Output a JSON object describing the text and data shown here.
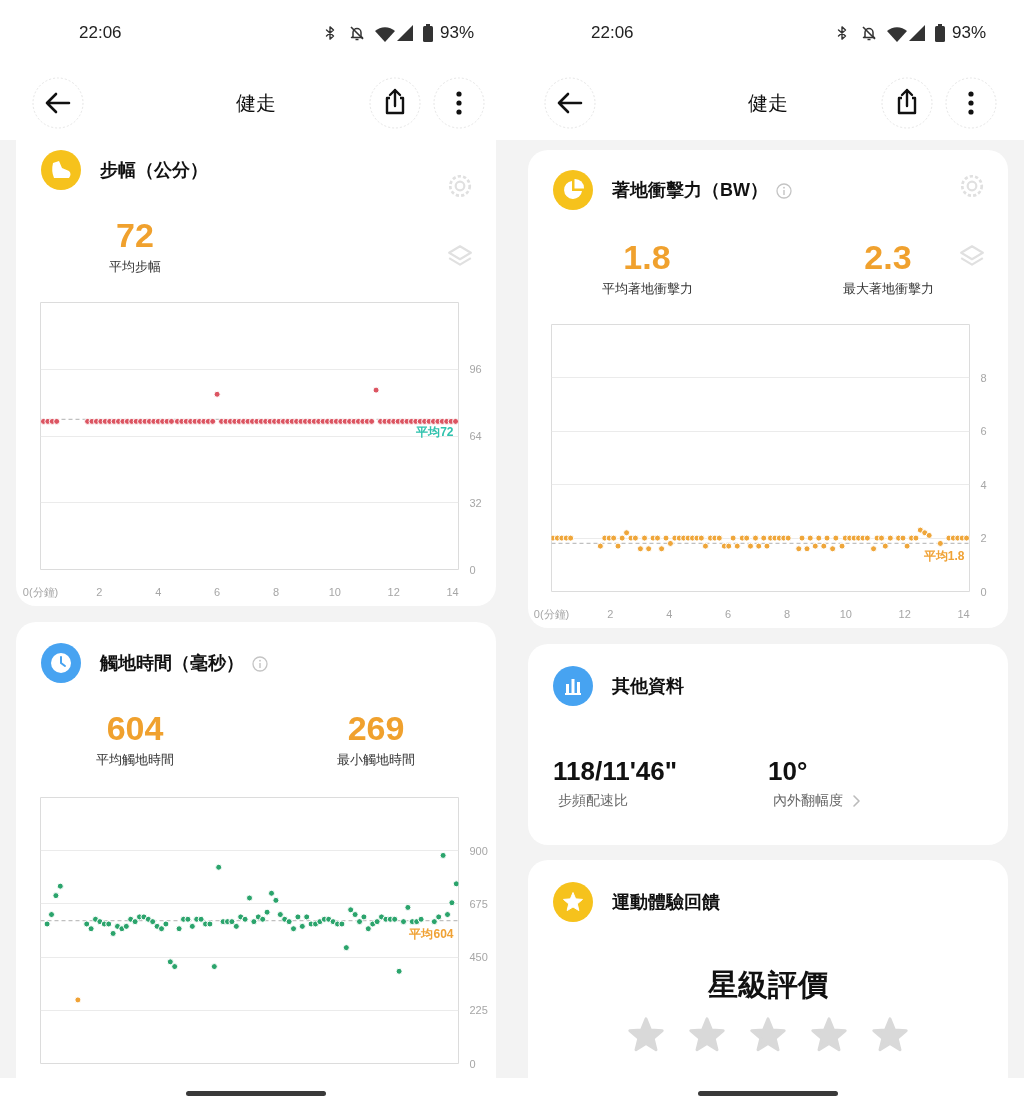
{
  "chart_data": [
    {
      "type": "other",
      "title": "健走",
      "annotations": [
        "22:06",
        "93%"
      ]
    },
    {
      "type": "scatter",
      "title": "步幅（公分）",
      "annotations": [
        "72",
        "平均步幅"
      ],
      "x": [
        0.1,
        0.25,
        0.4,
        0.55,
        1.6,
        1.75,
        1.9,
        2.05,
        2.2,
        2.35,
        2.5,
        2.65,
        2.8,
        2.95,
        3.1,
        3.25,
        3.4,
        3.55,
        3.7,
        3.85,
        4.0,
        4.15,
        4.3,
        4.45,
        4.65,
        4.8,
        4.95,
        5.1,
        5.25,
        5.4,
        5.55,
        5.7,
        5.85,
        6.0,
        6.15,
        6.3,
        6.45,
        6.6,
        6.75,
        6.9,
        7.05,
        7.2,
        7.35,
        7.5,
        7.65,
        7.8,
        7.95,
        8.1,
        8.25,
        8.4,
        8.55,
        8.7,
        8.85,
        9.0,
        9.15,
        9.3,
        9.45,
        9.6,
        9.75,
        9.9,
        10.05,
        10.2,
        10.35,
        10.5,
        10.65,
        10.8,
        10.95,
        11.1,
        11.25,
        11.4,
        11.55,
        11.7,
        11.85,
        12.0,
        12.15,
        12.3,
        12.45,
        12.6,
        12.75,
        12.9,
        13.05,
        13.2,
        13.35,
        13.5,
        13.65,
        13.8,
        13.95,
        14.1
      ],
      "xlim": [
        0,
        14.2
      ],
      "xticks": [
        {
          "value": 0,
          "label": "0(分鐘)"
        },
        2,
        4,
        6,
        8,
        10,
        12,
        14
      ],
      "ylim": [
        0,
        128
      ],
      "yticks": [
        0,
        32,
        64,
        96
      ],
      "grid": "y",
      "marker": "circle",
      "series": [
        {
          "color": "#dc5562",
          "values": [
            71,
            71,
            71,
            71,
            71,
            71,
            71,
            71,
            71,
            71,
            71,
            71,
            71,
            71,
            71,
            71,
            71,
            71,
            71,
            71,
            71,
            71,
            71,
            71,
            71,
            71,
            71,
            71,
            71,
            71,
            71,
            71,
            71,
            84,
            71,
            71,
            71,
            71,
            71,
            71,
            71,
            71,
            71,
            71,
            71,
            71,
            71,
            71,
            71,
            71,
            71,
            71,
            71,
            71,
            71,
            71,
            71,
            71,
            71,
            71,
            71,
            71,
            71,
            71,
            71,
            71,
            71,
            71,
            71,
            86,
            71,
            71,
            71,
            71,
            71,
            71,
            71,
            71,
            71,
            71,
            71,
            71,
            71,
            71,
            71,
            71,
            71,
            71
          ]
        }
      ],
      "ref_lines": [
        {
          "axis": "y",
          "value": 72,
          "label": "平均72",
          "color": "#c0c0c0",
          "line_style": "dashed"
        }
      ]
    },
    {
      "type": "scatter",
      "title": "觸地時間（毫秒）",
      "annotations": [
        "604",
        "平均觸地時間",
        "269",
        "最小觸地時間"
      ],
      "categories": [
        null,
        null,
        null,
        null,
        null,
        null,
        null,
        null,
        null,
        null,
        null,
        null,
        null,
        null,
        null,
        null,
        null,
        null,
        null,
        null,
        null,
        null,
        null,
        null,
        null,
        null,
        null,
        null,
        null,
        null,
        null,
        null,
        null,
        null,
        null,
        null,
        null,
        null,
        null,
        null,
        null,
        null,
        null,
        null,
        null,
        null,
        null,
        null,
        null,
        null,
        null,
        null,
        null,
        null,
        null,
        null,
        null,
        null,
        null,
        null,
        null,
        null,
        null,
        null,
        null,
        null,
        null,
        null,
        null,
        null,
        null,
        null,
        null,
        null,
        null,
        null,
        null,
        null,
        null,
        null,
        null,
        null,
        null,
        null,
        null,
        null,
        null,
        null,
        null,
        null,
        null,
        null,
        null,
        null,
        null
      ],
      "tick_labels": "y",
      "ylim": [
        0,
        1125
      ],
      "yticks": [
        0,
        225,
        450,
        675,
        900
      ],
      "grid": "y",
      "marker": "circle",
      "series": [
        {
          "color": "#2ba46c",
          "values": [
            null,
            590,
            630,
            710,
            750,
            null,
            null,
            null,
            null,
            null,
            590,
            570,
            610,
            600,
            590,
            590,
            550,
            580,
            570,
            580,
            610,
            600,
            620,
            620,
            610,
            600,
            580,
            570,
            590,
            430,
            410,
            570,
            610,
            610,
            580,
            610,
            610,
            590,
            590,
            410,
            830,
            600,
            600,
            600,
            580,
            620,
            610,
            700,
            600,
            620,
            610,
            640,
            720,
            690,
            630,
            610,
            600,
            570,
            620,
            580,
            620,
            590,
            590,
            600,
            610,
            610,
            600,
            590,
            590,
            490,
            650,
            630,
            600,
            620,
            570,
            590,
            600,
            620,
            610,
            610,
            610,
            390,
            600,
            660,
            600,
            600,
            610,
            null,
            null,
            600,
            620,
            880,
            630,
            680,
            760
          ]
        },
        {
          "color": "#f0a235",
          "values": [
            null,
            null,
            null,
            null,
            null,
            null,
            null,
            null,
            269,
            null,
            null,
            null,
            null,
            null,
            null,
            null,
            null,
            null,
            null,
            null,
            null,
            null,
            null,
            null,
            null,
            null,
            null,
            null,
            null,
            null,
            null,
            null,
            null,
            null,
            null,
            null,
            null,
            null,
            null,
            null,
            null,
            null,
            null,
            null,
            null,
            null,
            null,
            null,
            null,
            null,
            null,
            null,
            null,
            null,
            null,
            null,
            null,
            null,
            null,
            null,
            null,
            null,
            null,
            null,
            null,
            null,
            null,
            null,
            null,
            null,
            null,
            null,
            null,
            null,
            null,
            null,
            null,
            null,
            null,
            null,
            null,
            null,
            null,
            null,
            null,
            null,
            null,
            null,
            null,
            null,
            null,
            null,
            null,
            null,
            null
          ]
        }
      ],
      "ref_lines": [
        {
          "axis": "y",
          "value": 604,
          "label": "平均604",
          "color": "#c0c0c0",
          "line_style": "dashed"
        }
      ]
    },
    {
      "type": "other",
      "title": "健走",
      "annotations": [
        "22:06",
        "93%"
      ]
    },
    {
      "type": "scatter",
      "title": "著地衝擊力（BW）",
      "annotations": [
        "1.8",
        "平均著地衝擊力",
        "2.3",
        "最大著地衝擊力"
      ],
      "x": [
        0.05,
        0.2,
        0.35,
        0.5,
        0.65,
        1.66,
        1.81,
        1.96,
        2.11,
        2.26,
        2.4,
        2.55,
        2.7,
        2.85,
        3.02,
        3.16,
        3.3,
        3.45,
        3.6,
        3.74,
        3.89,
        4.04,
        4.19,
        4.34,
        4.49,
        4.64,
        4.79,
        4.94,
        5.09,
        5.23,
        5.4,
        5.55,
        5.7,
        5.87,
        6.02,
        6.17,
        6.31,
        6.48,
        6.63,
        6.76,
        6.93,
        7.04,
        7.21,
        7.32,
        7.44,
        7.59,
        7.74,
        7.89,
        8.04,
        8.4,
        8.51,
        8.68,
        8.79,
        8.96,
        9.08,
        9.25,
        9.36,
        9.55,
        9.66,
        9.87,
        9.98,
        10.13,
        10.28,
        10.43,
        10.58,
        10.73,
        10.94,
        11.06,
        11.21,
        11.34,
        11.51,
        11.79,
        11.94,
        12.08,
        12.23,
        12.38,
        12.53,
        12.68,
        12.83,
        13.21,
        13.5,
        13.65,
        13.8,
        13.95,
        14.1
      ],
      "xlim": [
        0,
        14.2
      ],
      "xticks": [
        {
          "value": 0,
          "label": "0(分鐘)"
        },
        2,
        4,
        6,
        8,
        10,
        12,
        14
      ],
      "ylim": [
        0,
        10
      ],
      "yticks": [
        0,
        2,
        4,
        6,
        8
      ],
      "grid": "y",
      "marker": "circle",
      "series": [
        {
          "color": "#efa63a",
          "values": [
            2.0,
            2.0,
            2.0,
            2.0,
            2.0,
            1.7,
            2.0,
            2.0,
            2.0,
            1.7,
            2.0,
            2.2,
            2.0,
            2.0,
            1.6,
            2.0,
            1.6,
            2.0,
            2.0,
            1.6,
            2.0,
            1.8,
            2.0,
            2.0,
            2.0,
            2.0,
            2.0,
            2.0,
            2.0,
            1.7,
            2.0,
            2.0,
            2.0,
            1.7,
            1.7,
            2.0,
            1.7,
            2.0,
            2.0,
            1.7,
            2.0,
            1.7,
            2.0,
            1.7,
            2.0,
            2.0,
            2.0,
            2.0,
            2.0,
            1.6,
            2.0,
            1.6,
            2.0,
            1.7,
            2.0,
            1.7,
            2.0,
            1.6,
            2.0,
            1.7,
            2.0,
            2.0,
            2.0,
            2.0,
            2.0,
            2.0,
            1.6,
            2.0,
            2.0,
            1.7,
            2.0,
            2.0,
            2.0,
            1.7,
            2.0,
            2.0,
            2.3,
            2.2,
            2.1,
            1.8,
            2.0,
            2.0,
            2.0,
            2.0,
            2.0
          ]
        }
      ],
      "ref_lines": [
        {
          "axis": "y",
          "value": 1.8,
          "label": "平均1.8",
          "color": "#c0c0c0",
          "line_style": "dashed"
        }
      ]
    },
    {
      "type": "other",
      "title": "其他資料",
      "annotations": [
        "118/11'46\"",
        "步頻配速比",
        "10°",
        "內外翻幅度"
      ]
    },
    {
      "type": "other",
      "title": "運動體驗回饋",
      "subtitle": "星級評價"
    }
  ]
}
